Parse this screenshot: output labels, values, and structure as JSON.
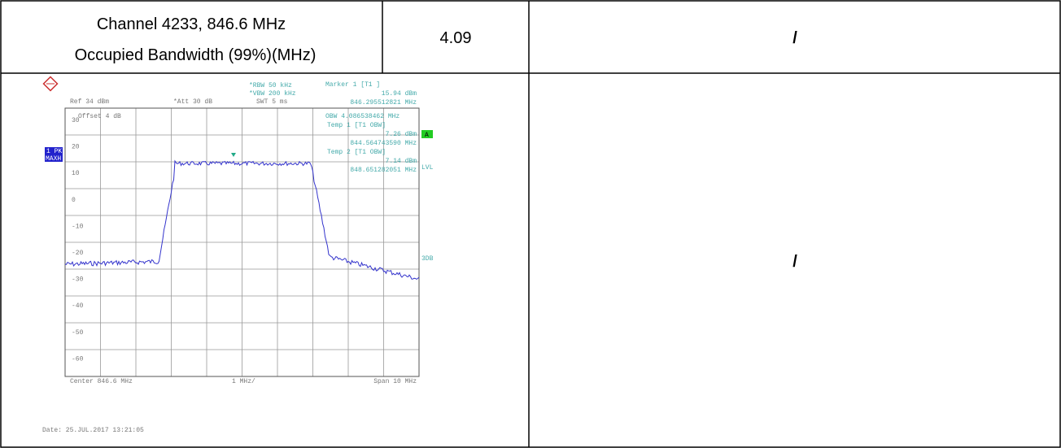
{
  "table": {
    "rows": [
      [
        "Channel 4233, 846.6 MHz",
        "Occupied Bandwidth (99%)(MHz)",
        "4.09",
        "/"
      ],
      [
        "/"
      ]
    ]
  },
  "plot": {
    "header": [
      "*RBW 50 kHz",
      "*VBW 200 kHz",
      "SWT 5 ms",
      "Ref 34 dBm",
      "*Att 30 dB",
      "Offset 4 dB"
    ],
    "markers": [
      "Marker 1 [T1 ]",
      "15.94 dBm",
      "846.295512821 MHz",
      "OBW 4.086538462 MHz",
      "Temp 1 [T1 OBW]",
      "7.26 dBm",
      "844.564743590 MHz",
      "Temp 2 [T1 OBW]",
      "7.14 dBm",
      "848.651282051 MHz"
    ],
    "side": [
      "1 PK",
      "MAXH",
      "A",
      "LVL",
      "3DB"
    ],
    "ylabels": [
      "30",
      "20",
      "10",
      "0",
      "-10",
      "-20",
      "-30",
      "-40",
      "-50",
      "-60"
    ],
    "footer": [
      "Center 846.6 MHz",
      "1 MHz/",
      "Span 10 MHz"
    ],
    "date": "Date: 25.JUL.2017 13:21:05"
  }
}
